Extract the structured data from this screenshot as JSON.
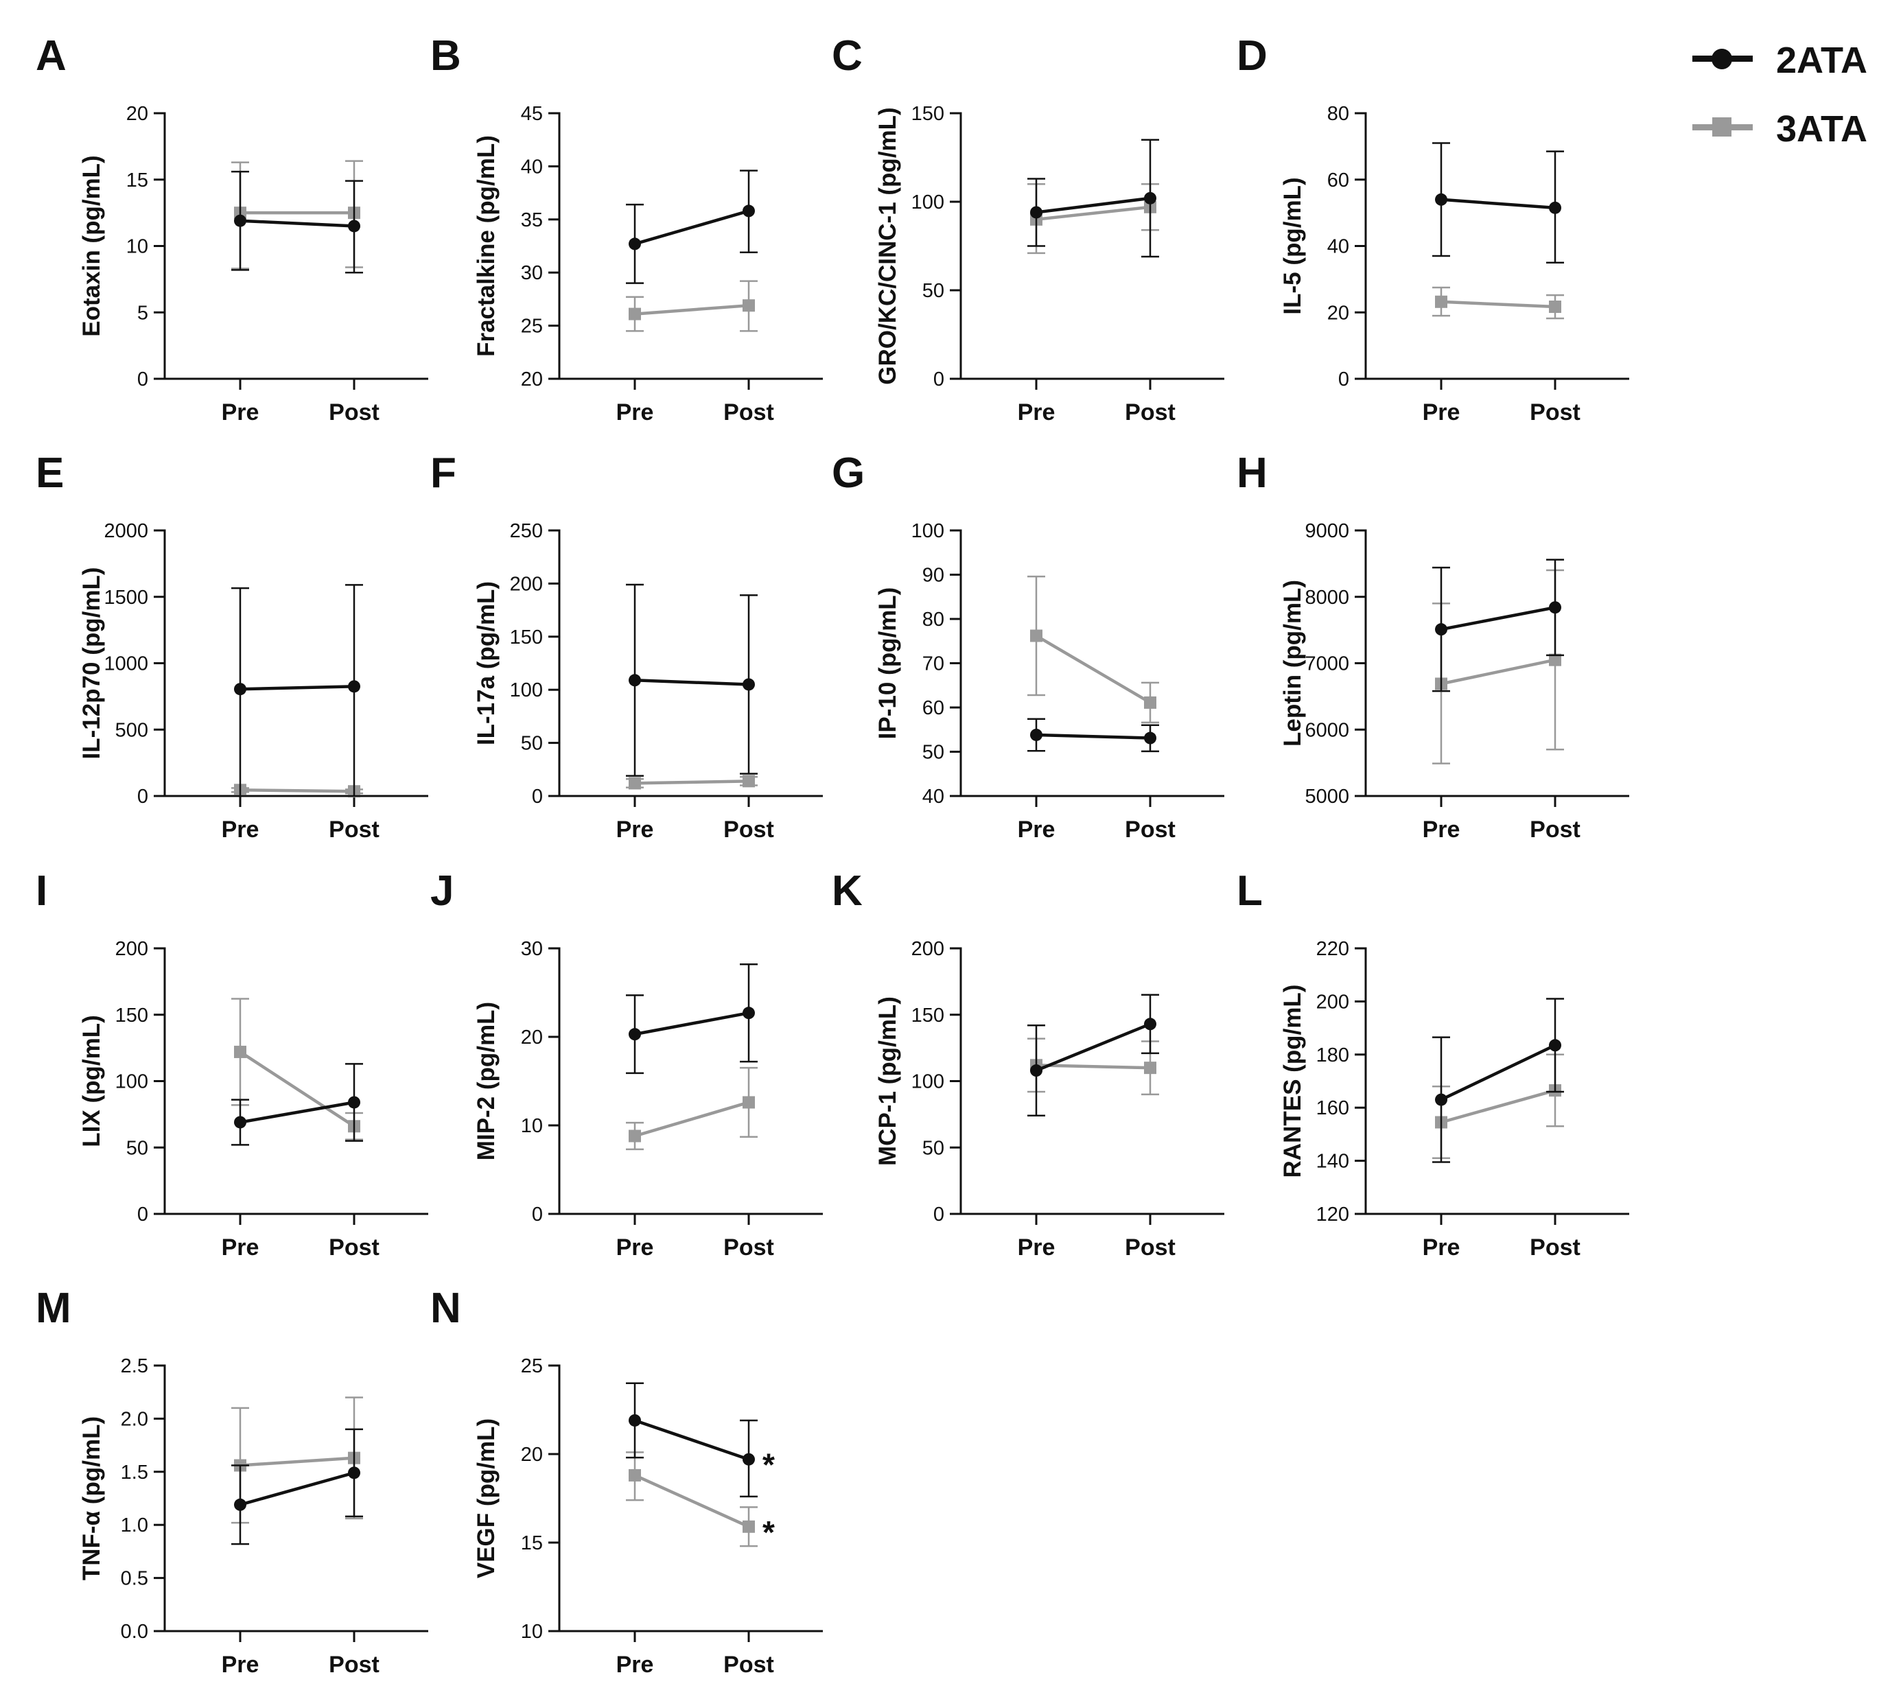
{
  "colors": {
    "2ATA": "#111111",
    "3ATA": "#999999"
  },
  "legend": {
    "series1": "2ATA",
    "series2": "3ATA"
  },
  "chart_data": [
    {
      "panel": "A",
      "type": "line",
      "ylabel": "Eotaxin (pg/mL)",
      "ylim": [
        0,
        20
      ],
      "yticks": [
        0,
        5,
        10,
        15,
        20
      ],
      "yticklabels": [
        "0",
        "5",
        "10",
        "15",
        "20"
      ],
      "categories": [
        "Pre",
        "Post"
      ],
      "series": [
        {
          "name": "2ATA",
          "values": [
            11.9,
            11.5
          ],
          "err_high": [
            15.6,
            14.9
          ],
          "err_low": [
            8.2,
            8.0
          ]
        },
        {
          "name": "3ATA",
          "values": [
            12.5,
            12.5
          ],
          "err_high": [
            16.3,
            16.4
          ],
          "err_low": [
            8.3,
            8.4
          ]
        }
      ]
    },
    {
      "panel": "B",
      "type": "line",
      "ylabel": "Fractalkine (pg/mL)",
      "ylim": [
        20,
        45
      ],
      "yticks": [
        20,
        25,
        30,
        35,
        40,
        45
      ],
      "yticklabels": [
        "20",
        "25",
        "30",
        "35",
        "40",
        "45"
      ],
      "categories": [
        "Pre",
        "Post"
      ],
      "series": [
        {
          "name": "2ATA",
          "values": [
            32.7,
            35.8
          ],
          "err_high": [
            36.4,
            39.6
          ],
          "err_low": [
            29.0,
            31.9
          ]
        },
        {
          "name": "3ATA",
          "values": [
            26.1,
            26.9
          ],
          "err_high": [
            27.7,
            29.2
          ],
          "err_low": [
            24.5,
            24.5
          ]
        }
      ]
    },
    {
      "panel": "C",
      "type": "line",
      "ylabel": "GRO/KC/CINC-1 (pg/mL)",
      "ylim": [
        0,
        150
      ],
      "yticks": [
        0,
        50,
        100,
        150
      ],
      "yticklabels": [
        "0",
        "50",
        "100",
        "150"
      ],
      "categories": [
        "Pre",
        "Post"
      ],
      "series": [
        {
          "name": "2ATA",
          "values": [
            94,
            102
          ],
          "err_high": [
            113,
            135
          ],
          "err_low": [
            75,
            69
          ]
        },
        {
          "name": "3ATA",
          "values": [
            90,
            97
          ],
          "err_high": [
            110,
            110
          ],
          "err_low": [
            71,
            84
          ]
        }
      ]
    },
    {
      "panel": "D",
      "type": "line",
      "ylabel": "IL-5 (pg/mL)",
      "ylim": [
        0,
        80
      ],
      "yticks": [
        0,
        20,
        40,
        60,
        80
      ],
      "yticklabels": [
        "0",
        "20",
        "40",
        "60",
        "80"
      ],
      "categories": [
        "Pre",
        "Post"
      ],
      "series": [
        {
          "name": "2ATA",
          "values": [
            54,
            51.5
          ],
          "err_high": [
            71,
            68.5
          ],
          "err_low": [
            37,
            35
          ]
        },
        {
          "name": "3ATA",
          "values": [
            23.2,
            21.7
          ],
          "err_high": [
            27.5,
            25.2
          ],
          "err_low": [
            19,
            18.2
          ]
        }
      ]
    },
    {
      "panel": "E",
      "type": "line",
      "ylabel": "IL-12p70 (pg/mL)",
      "ylim": [
        0,
        2000
      ],
      "yticks": [
        0,
        500,
        1000,
        1500,
        2000
      ],
      "yticklabels": [
        "0",
        "500",
        "1000",
        "1500",
        "2000"
      ],
      "categories": [
        "Pre",
        "Post"
      ],
      "series": [
        {
          "name": "2ATA",
          "values": [
            805,
            825
          ],
          "err_high": [
            1565,
            1590
          ],
          "err_low": [
            0,
            0
          ]
        },
        {
          "name": "3ATA",
          "values": [
            45,
            35
          ],
          "err_high": [
            60,
            50
          ],
          "err_low": [
            30,
            20
          ]
        }
      ]
    },
    {
      "panel": "F",
      "type": "line",
      "ylabel": "IL-17a (pg/mL)",
      "ylim": [
        0,
        250
      ],
      "yticks": [
        0,
        50,
        100,
        150,
        200,
        250
      ],
      "yticklabels": [
        "0",
        "50",
        "100",
        "150",
        "200",
        "250"
      ],
      "categories": [
        "Pre",
        "Post"
      ],
      "series": [
        {
          "name": "2ATA",
          "values": [
            109,
            105
          ],
          "err_high": [
            199,
            189
          ],
          "err_low": [
            19,
            21
          ]
        },
        {
          "name": "3ATA",
          "values": [
            12,
            14
          ],
          "err_high": [
            16,
            18
          ],
          "err_low": [
            8,
            10
          ]
        }
      ]
    },
    {
      "panel": "G",
      "type": "line",
      "ylabel": "IP-10 (pg/mL)",
      "ylim": [
        40,
        100
      ],
      "yticks": [
        40,
        50,
        60,
        70,
        80,
        90,
        100
      ],
      "yticklabels": [
        "40",
        "50",
        "60",
        "70",
        "80",
        "90",
        "100"
      ],
      "categories": [
        "Pre",
        "Post"
      ],
      "series": [
        {
          "name": "2ATA",
          "values": [
            53.8,
            53.1
          ],
          "err_high": [
            57.4,
            56
          ],
          "err_low": [
            50.2,
            50.1
          ]
        },
        {
          "name": "3ATA",
          "values": [
            76.2,
            61.1
          ],
          "err_high": [
            89.6,
            65.6
          ],
          "err_low": [
            62.8,
            56.6
          ]
        }
      ]
    },
    {
      "panel": "H",
      "type": "line",
      "ylabel": "Leptin (pg/mL)",
      "ylim": [
        5000,
        9000
      ],
      "yticks": [
        5000,
        6000,
        7000,
        8000,
        9000
      ],
      "yticklabels": [
        "5000",
        "6000",
        "7000",
        "8000",
        "9000"
      ],
      "categories": [
        "Pre",
        "Post"
      ],
      "series": [
        {
          "name": "2ATA",
          "values": [
            7510,
            7840
          ],
          "err_high": [
            8440,
            8560
          ],
          "err_low": [
            6580,
            7120
          ]
        },
        {
          "name": "3ATA",
          "values": [
            6690,
            7050
          ],
          "err_high": [
            7900,
            8400
          ],
          "err_low": [
            5490,
            5700
          ]
        }
      ]
    },
    {
      "panel": "I",
      "type": "line",
      "ylabel": "LIX (pg/mL)",
      "ylim": [
        0,
        200
      ],
      "yticks": [
        0,
        50,
        100,
        150,
        200
      ],
      "yticklabels": [
        "0",
        "50",
        "100",
        "150",
        "200"
      ],
      "categories": [
        "Pre",
        "Post"
      ],
      "series": [
        {
          "name": "2ATA",
          "values": [
            69,
            84
          ],
          "err_high": [
            86,
            113
          ],
          "err_low": [
            52,
            55
          ]
        },
        {
          "name": "3ATA",
          "values": [
            122,
            66
          ],
          "err_high": [
            162,
            76
          ],
          "err_low": [
            82,
            56
          ]
        }
      ]
    },
    {
      "panel": "J",
      "type": "line",
      "ylabel": "MIP-2 (pg/mL)",
      "ylim": [
        0,
        30
      ],
      "yticks": [
        0,
        10,
        20,
        30
      ],
      "yticklabels": [
        "0",
        "10",
        "20",
        "30"
      ],
      "categories": [
        "Pre",
        "Post"
      ],
      "series": [
        {
          "name": "2ATA",
          "values": [
            20.3,
            22.7
          ],
          "err_high": [
            24.7,
            28.2
          ],
          "err_low": [
            15.9,
            17.2
          ]
        },
        {
          "name": "3ATA",
          "values": [
            8.8,
            12.6
          ],
          "err_high": [
            10.3,
            16.5
          ],
          "err_low": [
            7.3,
            8.7
          ]
        }
      ]
    },
    {
      "panel": "K",
      "type": "line",
      "ylabel": "MCP-1 (pg/mL)",
      "ylim": [
        0,
        200
      ],
      "yticks": [
        0,
        50,
        100,
        150,
        200
      ],
      "yticklabels": [
        "0",
        "50",
        "100",
        "150",
        "200"
      ],
      "categories": [
        "Pre",
        "Post"
      ],
      "series": [
        {
          "name": "2ATA",
          "values": [
            108,
            143
          ],
          "err_high": [
            142,
            165
          ],
          "err_low": [
            74,
            121
          ]
        },
        {
          "name": "3ATA",
          "values": [
            112,
            110
          ],
          "err_high": [
            132,
            130
          ],
          "err_low": [
            92,
            90
          ]
        }
      ]
    },
    {
      "panel": "L",
      "type": "line",
      "ylabel": "RANTES (pg/mL)",
      "ylim": [
        120,
        220
      ],
      "yticks": [
        120,
        140,
        160,
        180,
        200,
        220
      ],
      "yticklabels": [
        "120",
        "140",
        "160",
        "180",
        "200",
        "220"
      ],
      "categories": [
        "Pre",
        "Post"
      ],
      "series": [
        {
          "name": "2ATA",
          "values": [
            163,
            183.5
          ],
          "err_high": [
            186.5,
            201
          ],
          "err_low": [
            139.5,
            166
          ]
        },
        {
          "name": "3ATA",
          "values": [
            154.5,
            166.5
          ],
          "err_high": [
            168,
            180
          ],
          "err_low": [
            141,
            153
          ]
        }
      ]
    },
    {
      "panel": "M",
      "type": "line",
      "ylabel": "TNF-α (pg/mL)",
      "ylim": [
        0,
        2.5
      ],
      "yticks": [
        0,
        0.5,
        1,
        1.5,
        2,
        2.5
      ],
      "yticklabels": [
        "0.0",
        "0.5",
        "1.0",
        "1.5",
        "2.0",
        "2.5"
      ],
      "categories": [
        "Pre",
        "Post"
      ],
      "series": [
        {
          "name": "2ATA",
          "values": [
            1.19,
            1.49
          ],
          "err_high": [
            1.56,
            1.9
          ],
          "err_low": [
            0.82,
            1.08
          ]
        },
        {
          "name": "3ATA",
          "values": [
            1.56,
            1.63
          ],
          "err_high": [
            2.1,
            2.2
          ],
          "err_low": [
            1.02,
            1.06
          ]
        }
      ]
    },
    {
      "panel": "N",
      "type": "line",
      "ylabel": "VEGF (pg/mL)",
      "ylim": [
        10,
        25
      ],
      "yticks": [
        10,
        15,
        20,
        25
      ],
      "yticklabels": [
        "10",
        "15",
        "20",
        "25"
      ],
      "categories": [
        "Pre",
        "Post"
      ],
      "series": [
        {
          "name": "2ATA",
          "values": [
            21.9,
            19.7
          ],
          "err_high": [
            24,
            21.9
          ],
          "err_low": [
            19.8,
            17.6
          ]
        },
        {
          "name": "3ATA",
          "values": [
            18.8,
            15.9
          ],
          "err_high": [
            20.1,
            17
          ],
          "err_low": [
            17.4,
            14.8
          ]
        }
      ],
      "annotations": [
        "*",
        "*"
      ]
    }
  ]
}
